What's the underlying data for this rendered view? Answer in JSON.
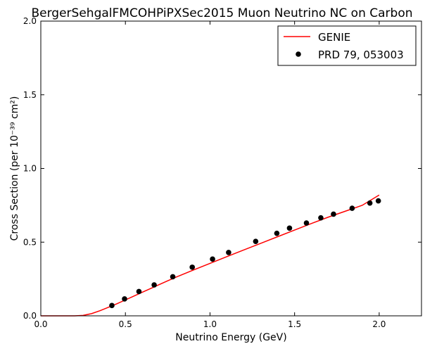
{
  "chart_data": {
    "type": "scatter",
    "title": "BergerSehgalFMCOHPiPXSec2015 Muon Neutrino NC on Carbon",
    "xlabel": "Neutrino Energy (GeV)",
    "ylabel": "Cross Section (per 10⁻³⁹ cm²)",
    "xlim": [
      0.0,
      2.25
    ],
    "ylim": [
      0.0,
      2.0
    ],
    "xticks": [
      0.0,
      0.5,
      1.0,
      1.5,
      2.0
    ],
    "yticks": [
      0.0,
      0.5,
      1.0,
      1.5,
      2.0
    ],
    "xtick_labels": [
      "0.0",
      "0.5",
      "1.0",
      "1.5",
      "2.0"
    ],
    "ytick_labels": [
      "0.0",
      "0.5",
      "1.0",
      "1.5",
      "2.0"
    ],
    "legend_position": "top-right",
    "series": [
      {
        "name": "GENIE",
        "kind": "line",
        "color": "#ff0000",
        "x": [
          0.0,
          0.2,
          0.25,
          0.3,
          0.35,
          0.4,
          0.45,
          0.5,
          0.55,
          0.6,
          0.65,
          0.7,
          0.75,
          0.8,
          0.9,
          1.0,
          1.1,
          1.2,
          1.3,
          1.4,
          1.5,
          1.6,
          1.7,
          1.8,
          1.9,
          2.0
        ],
        "y": [
          0.0,
          0.0,
          0.003,
          0.015,
          0.035,
          0.058,
          0.082,
          0.108,
          0.134,
          0.16,
          0.186,
          0.212,
          0.238,
          0.263,
          0.31,
          0.356,
          0.402,
          0.447,
          0.492,
          0.537,
          0.582,
          0.627,
          0.67,
          0.71,
          0.75,
          0.82
        ]
      },
      {
        "name": "PRD 79, 053003",
        "kind": "scatter",
        "color": "#000000",
        "x": [
          0.42,
          0.495,
          0.58,
          0.67,
          0.78,
          0.895,
          1.015,
          1.11,
          1.27,
          1.395,
          1.47,
          1.57,
          1.655,
          1.73,
          1.84,
          1.945,
          1.995
        ],
        "y": [
          0.07,
          0.115,
          0.165,
          0.21,
          0.265,
          0.33,
          0.385,
          0.43,
          0.505,
          0.56,
          0.595,
          0.63,
          0.665,
          0.69,
          0.73,
          0.765,
          0.78
        ]
      }
    ]
  }
}
